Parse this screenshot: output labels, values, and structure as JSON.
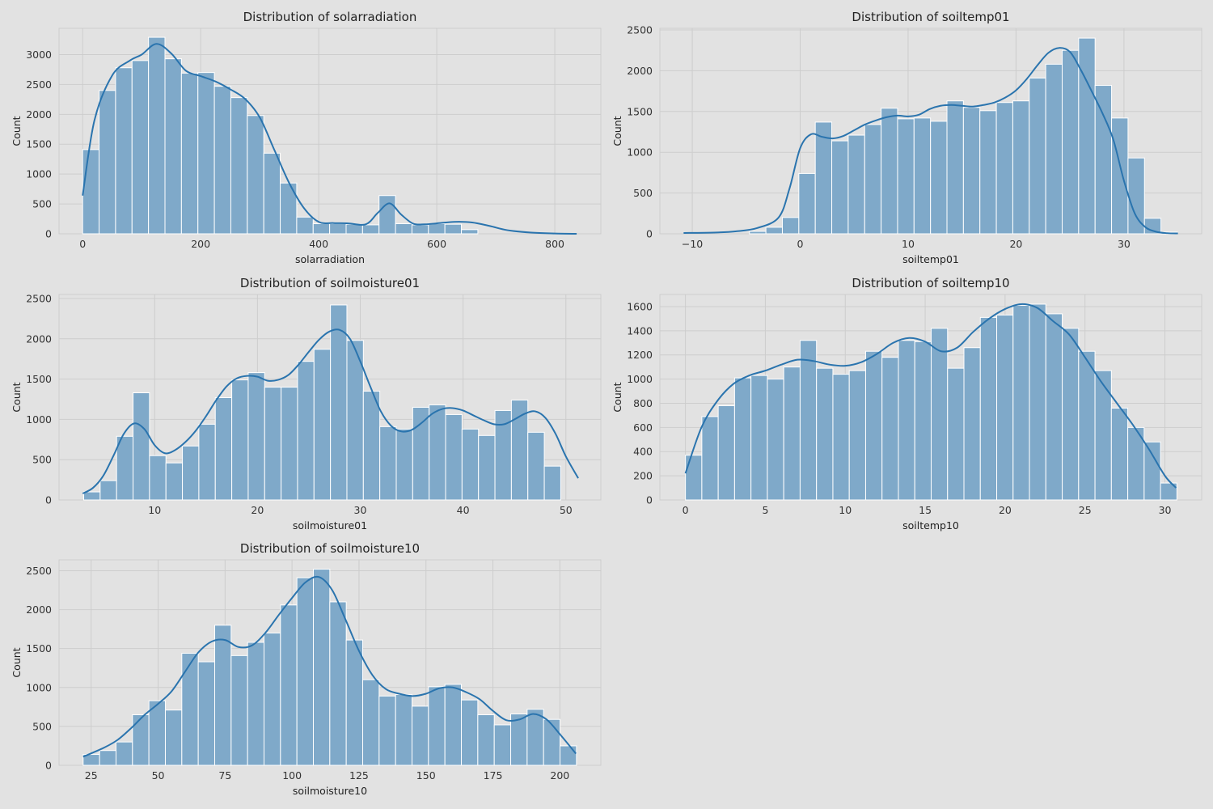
{
  "figure": {
    "background": "#e2e2e2",
    "plot_background": "#e2e2e2",
    "grid_color": "#cdcdcd",
    "bar_fill": "#7fa9c9",
    "bar_edge": "#ffffff",
    "kde_color": "#2a74ae",
    "text_color": "#222222",
    "tick_color": "#333333"
  },
  "chart_data": [
    {
      "type": "bar",
      "title": "Distribution of solarradiation",
      "xlabel": "solarradiation",
      "ylabel": "Count",
      "grid": true,
      "xlim": [
        -40,
        878
      ],
      "ylim": [
        0,
        3440
      ],
      "xticks": [
        0,
        200,
        400,
        600,
        800
      ],
      "xtick_labels": [
        "0",
        "200",
        "400",
        "600",
        "800"
      ],
      "yticks": [
        0,
        500,
        1000,
        1500,
        2000,
        2500,
        3000
      ],
      "ytick_labels": [
        "0",
        "500",
        "1000",
        "1500",
        "2000",
        "2500",
        "3000"
      ],
      "bin_start": 0,
      "bin_width": 27.9,
      "values": [
        1410,
        2400,
        2780,
        2900,
        3290,
        2930,
        2690,
        2700,
        2470,
        2280,
        1980,
        1350,
        850,
        280,
        170,
        170,
        160,
        150,
        640,
        170,
        150,
        170,
        160,
        70,
        0,
        0,
        0,
        0,
        0,
        0
      ],
      "kde_x": [
        0,
        20,
        50,
        80,
        100,
        125,
        150,
        175,
        200,
        225,
        250,
        275,
        300,
        325,
        350,
        375,
        400,
        425,
        450,
        480,
        500,
        520,
        540,
        560,
        580,
        600,
        630,
        660,
        690,
        720,
        760,
        800,
        837
      ],
      "kde_y": [
        640,
        1900,
        2650,
        2900,
        3000,
        3180,
        3020,
        2730,
        2640,
        2550,
        2420,
        2260,
        1950,
        1400,
        850,
        430,
        200,
        180,
        175,
        160,
        350,
        510,
        320,
        170,
        160,
        175,
        200,
        190,
        130,
        60,
        20,
        5,
        0
      ]
    },
    {
      "type": "bar",
      "title": "Distribution of soiltemp01",
      "xlabel": "soiltemp01",
      "ylabel": "Count",
      "grid": true,
      "xlim": [
        -13.0,
        37.2
      ],
      "ylim": [
        0,
        2520
      ],
      "xticks": [
        -10,
        0,
        10,
        20,
        30
      ],
      "xtick_labels": [
        "−10",
        "0",
        "10",
        "20",
        "30"
      ],
      "yticks": [
        0,
        500,
        1000,
        1500,
        2000,
        2500
      ],
      "ytick_labels": [
        "0",
        "500",
        "1000",
        "1500",
        "2000",
        "2500"
      ],
      "bin_start": -10.8,
      "bin_width": 1.525,
      "values": [
        0,
        0,
        0,
        0,
        30,
        80,
        200,
        740,
        1370,
        1140,
        1210,
        1340,
        1540,
        1410,
        1420,
        1380,
        1630,
        1550,
        1510,
        1610,
        1630,
        1910,
        2080,
        2250,
        2400,
        1820,
        1420,
        930,
        190,
        20
      ],
      "kde_x": [
        -10.8,
        -8,
        -6,
        -4,
        -2,
        -1,
        0,
        1,
        2,
        3,
        4,
        5,
        6,
        7,
        8,
        9,
        10,
        11,
        12,
        13,
        14,
        15,
        16,
        17,
        18,
        19,
        20,
        21,
        22,
        23,
        24,
        25,
        26,
        27,
        28,
        29,
        30,
        31,
        32,
        33,
        34,
        35
      ],
      "kde_y": [
        10,
        15,
        30,
        70,
        200,
        550,
        1050,
        1220,
        1190,
        1170,
        1200,
        1270,
        1340,
        1390,
        1430,
        1450,
        1440,
        1460,
        1530,
        1570,
        1580,
        1570,
        1560,
        1580,
        1610,
        1670,
        1760,
        1900,
        2070,
        2220,
        2280,
        2230,
        2010,
        1750,
        1480,
        1160,
        650,
        250,
        80,
        25,
        8,
        5
      ]
    },
    {
      "type": "bar",
      "title": "Distribution of soilmoisture01",
      "xlabel": "soilmoisture01",
      "ylabel": "Count",
      "grid": true,
      "xlim": [
        0.7,
        53.4
      ],
      "ylim": [
        0,
        2550
      ],
      "xticks": [
        10,
        20,
        30,
        40,
        50
      ],
      "xtick_labels": [
        "10",
        "20",
        "30",
        "40",
        "50"
      ],
      "yticks": [
        0,
        500,
        1000,
        1500,
        2000,
        2500
      ],
      "ytick_labels": [
        "0",
        "500",
        "1000",
        "1500",
        "2000",
        "2500"
      ],
      "bin_start": 3.1,
      "bin_width": 1.6,
      "values": [
        100,
        240,
        790,
        1330,
        550,
        460,
        670,
        940,
        1270,
        1490,
        1580,
        1400,
        1400,
        1720,
        1870,
        2420,
        1980,
        1350,
        910,
        880,
        1150,
        1180,
        1060,
        880,
        800,
        1110,
        1240,
        840,
        420,
        0
      ],
      "kde_x": [
        3,
        4,
        5,
        6,
        7,
        8,
        9,
        10,
        11,
        12,
        13,
        14,
        15,
        16,
        17,
        18,
        19,
        20,
        21,
        22,
        23,
        24,
        25,
        26,
        27,
        28,
        29,
        30,
        31,
        32,
        33,
        34,
        35,
        36,
        37,
        38,
        39,
        40,
        41,
        42,
        43,
        44,
        45,
        46,
        47,
        48,
        49,
        50,
        51.2
      ],
      "kde_y": [
        80,
        150,
        300,
        550,
        820,
        950,
        880,
        680,
        580,
        620,
        720,
        860,
        1040,
        1240,
        1410,
        1510,
        1540,
        1530,
        1480,
        1490,
        1550,
        1680,
        1840,
        1990,
        2090,
        2110,
        2000,
        1720,
        1400,
        1100,
        920,
        850,
        870,
        960,
        1070,
        1130,
        1140,
        1110,
        1050,
        990,
        940,
        940,
        1000,
        1070,
        1100,
        1020,
        820,
        540,
        270
      ]
    },
    {
      "type": "bar",
      "title": "Distribution of soiltemp10",
      "xlabel": "soiltemp10",
      "ylabel": "Count",
      "grid": true,
      "xlim": [
        -1.6,
        32.3
      ],
      "ylim": [
        0,
        1700
      ],
      "xticks": [
        0,
        5,
        10,
        15,
        20,
        25,
        30
      ],
      "xtick_labels": [
        "0",
        "5",
        "10",
        "15",
        "20",
        "25",
        "30"
      ],
      "yticks": [
        0,
        200,
        400,
        600,
        800,
        1000,
        1200,
        1400,
        1600
      ],
      "ytick_labels": [
        "0",
        "200",
        "400",
        "600",
        "800",
        "1000",
        "1200",
        "1400",
        "1600"
      ],
      "bin_start": 0,
      "bin_width": 1.025,
      "values": [
        370,
        690,
        780,
        1010,
        1030,
        1000,
        1100,
        1320,
        1090,
        1040,
        1070,
        1230,
        1180,
        1320,
        1310,
        1420,
        1090,
        1260,
        1510,
        1530,
        1610,
        1620,
        1540,
        1420,
        1230,
        1070,
        760,
        600,
        480,
        140
      ],
      "kde_x": [
        0,
        1,
        2,
        3,
        4,
        5,
        6,
        7,
        8,
        9,
        10,
        11,
        12,
        13,
        14,
        15,
        16,
        17,
        18,
        19,
        20,
        21,
        22,
        23,
        24,
        25,
        26,
        27,
        28,
        29,
        30,
        30.7
      ],
      "kde_y": [
        220,
        600,
        820,
        960,
        1030,
        1070,
        1120,
        1160,
        1150,
        1120,
        1110,
        1140,
        1210,
        1300,
        1340,
        1310,
        1230,
        1260,
        1390,
        1500,
        1580,
        1620,
        1590,
        1480,
        1370,
        1180,
        980,
        800,
        620,
        420,
        200,
        100
      ]
    },
    {
      "type": "bar",
      "title": "Distribution of soilmoisture10",
      "xlabel": "soilmoisture10",
      "ylabel": "Count",
      "grid": true,
      "xlim": [
        13.0,
        215.3
      ],
      "ylim": [
        0,
        2640
      ],
      "xticks": [
        25,
        50,
        75,
        100,
        125,
        150,
        175,
        200
      ],
      "xtick_labels": [
        "25",
        "50",
        "75",
        "100",
        "125",
        "150",
        "175",
        "200"
      ],
      "yticks": [
        0,
        500,
        1000,
        1500,
        2000,
        2500
      ],
      "ytick_labels": [
        "0",
        "500",
        "1000",
        "1500",
        "2000",
        "2500"
      ],
      "bin_start": 22,
      "bin_width": 6.14,
      "values": [
        140,
        190,
        300,
        650,
        830,
        710,
        1440,
        1330,
        1800,
        1410,
        1580,
        1700,
        2060,
        2410,
        2520,
        2100,
        1610,
        1100,
        890,
        910,
        760,
        1010,
        1040,
        840,
        650,
        520,
        660,
        720,
        590,
        250
      ],
      "kde_x": [
        22,
        30,
        35,
        40,
        45,
        50,
        55,
        60,
        65,
        70,
        75,
        80,
        85,
        90,
        95,
        100,
        105,
        110,
        115,
        120,
        125,
        130,
        135,
        140,
        145,
        150,
        155,
        160,
        165,
        170,
        175,
        180,
        185,
        190,
        195,
        200,
        206
      ],
      "kde_y": [
        110,
        230,
        330,
        480,
        650,
        790,
        950,
        1200,
        1450,
        1590,
        1610,
        1520,
        1540,
        1700,
        1930,
        2150,
        2350,
        2420,
        2250,
        1870,
        1470,
        1160,
        980,
        920,
        890,
        920,
        990,
        1000,
        940,
        850,
        700,
        580,
        590,
        660,
        590,
        400,
        150
      ]
    }
  ]
}
